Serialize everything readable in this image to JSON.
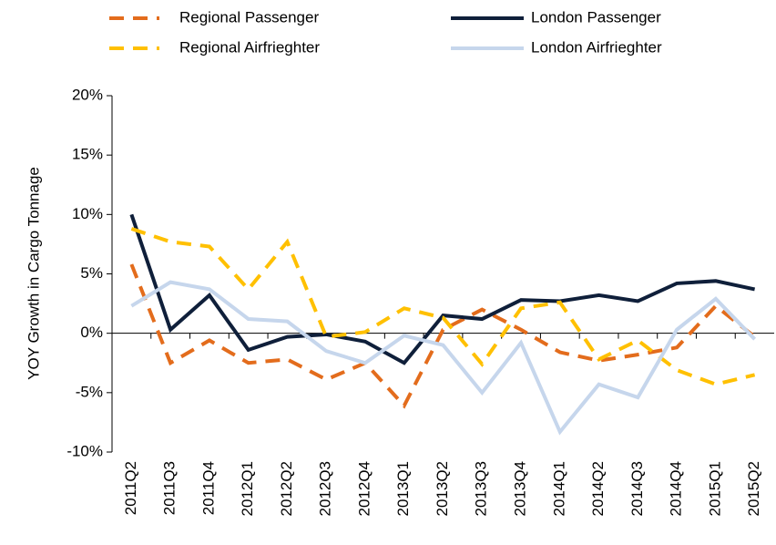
{
  "chart_data": {
    "type": "line",
    "y_label": "YOY Growth in Cargo Tonnage",
    "categories": [
      "2011Q2",
      "2011Q3",
      "2011Q4",
      "2012Q1",
      "2012Q2",
      "2012Q3",
      "2012Q4",
      "2013Q1",
      "2013Q2",
      "2013Q3",
      "2013Q4",
      "2014Q1",
      "2014Q2",
      "2014Q3",
      "2014Q4",
      "2015Q1",
      "2015Q2"
    ],
    "series": [
      {
        "name": "Regional Passenger",
        "color": "#e36c1c",
        "dashed": true,
        "values": [
          5.8,
          -2.5,
          -0.6,
          -2.5,
          -2.2,
          -3.9,
          -2.5,
          -6.1,
          0.3,
          2.0,
          0.3,
          -1.6,
          -2.3,
          -1.8,
          -1.2,
          2.3,
          -0.3
        ]
      },
      {
        "name": "London Passenger",
        "color": "#0f1f3a",
        "dashed": false,
        "values": [
          10.0,
          0.3,
          3.2,
          -1.4,
          -0.3,
          -0.1,
          -0.7,
          -2.5,
          1.5,
          1.2,
          2.8,
          2.7,
          3.2,
          2.7,
          4.2,
          4.4,
          3.7
        ]
      },
      {
        "name": "Regional Airfrieghter",
        "color": "#ffc000",
        "dashed": true,
        "values": [
          8.8,
          7.7,
          7.3,
          3.7,
          7.7,
          -0.3,
          0.1,
          2.1,
          1.3,
          -2.6,
          2.1,
          2.6,
          -2.2,
          -0.6,
          -3.1,
          -4.3,
          -3.5
        ]
      },
      {
        "name": "London Airfrieghter",
        "color": "#c6d6ec",
        "dashed": false,
        "values": [
          2.3,
          4.3,
          3.7,
          1.2,
          1.0,
          -1.5,
          -2.5,
          -0.2,
          -1.0,
          -5.0,
          -0.8,
          -8.3,
          -4.3,
          -5.4,
          0.3,
          2.9,
          -0.5
        ]
      }
    ],
    "ylim": [
      -10,
      20
    ],
    "yticks": [
      {
        "value": -10,
        "label": "-10%"
      },
      {
        "value": -5,
        "label": "-5%"
      },
      {
        "value": 0,
        "label": "0%"
      },
      {
        "value": 5,
        "label": "5%"
      },
      {
        "value": 10,
        "label": "10%"
      },
      {
        "value": 15,
        "label": "15%"
      },
      {
        "value": 20,
        "label": "20%"
      }
    ]
  }
}
